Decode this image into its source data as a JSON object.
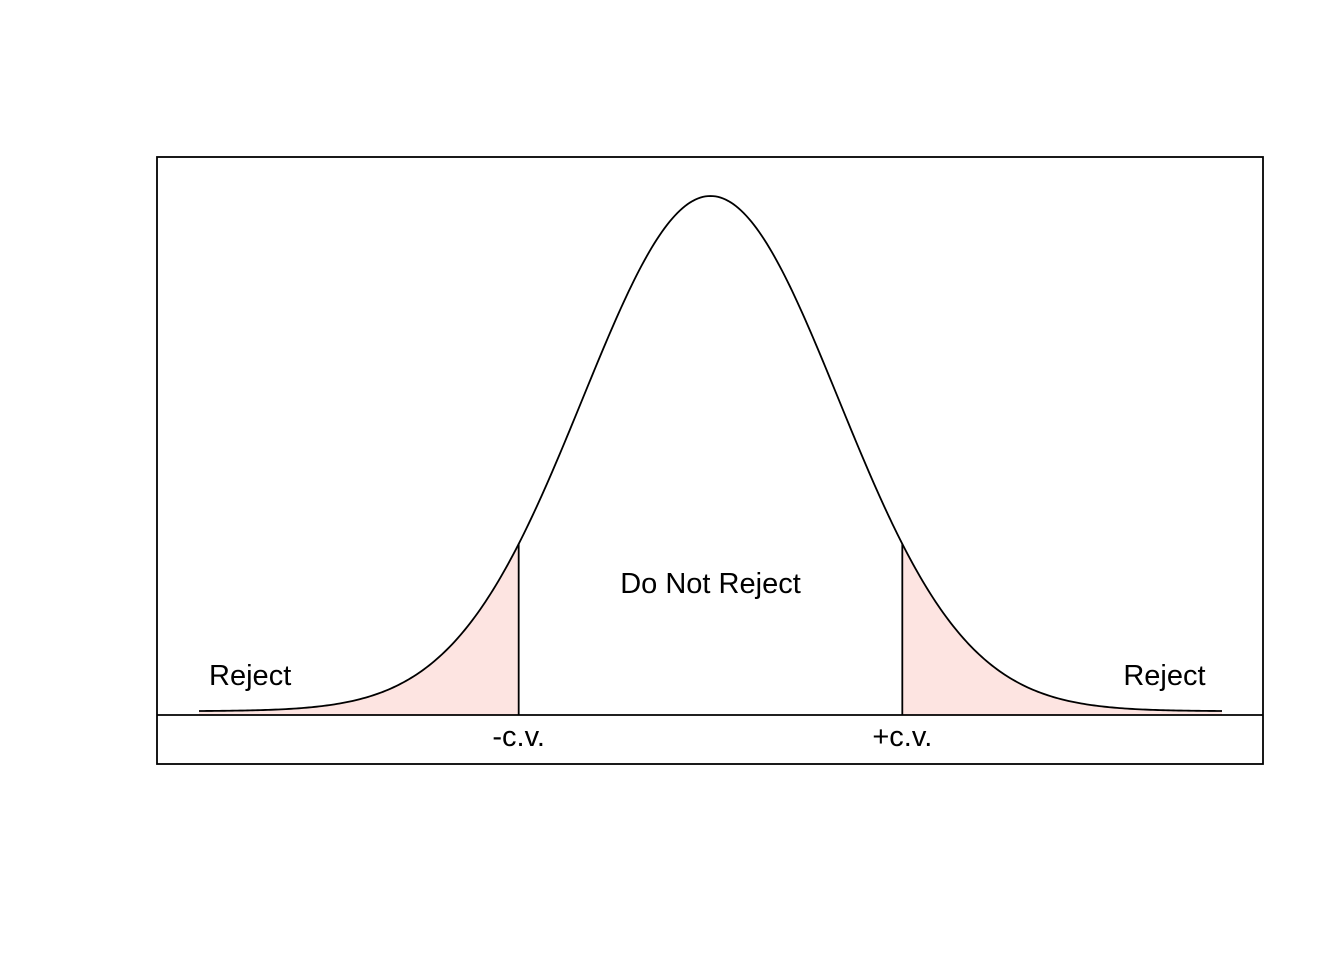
{
  "chart_data": {
    "type": "area",
    "distribution": "normal",
    "xlim": [
      -4,
      4
    ],
    "critical_values": [
      -1.5,
      1.5
    ],
    "grid": false,
    "regions": [
      {
        "label": "Reject",
        "from": -4,
        "to": -1.5,
        "shaded": true
      },
      {
        "label": "Do Not Reject",
        "from": -1.5,
        "to": 1.5,
        "shaded": false
      },
      {
        "label": "Reject",
        "from": 1.5,
        "to": 4,
        "shaded": true
      }
    ],
    "tick_labels": [
      "-c.v.",
      "+c.v."
    ]
  },
  "colors": {
    "reject_fill": "#fde4e1",
    "line": "#000000",
    "background": "#ffffff"
  }
}
